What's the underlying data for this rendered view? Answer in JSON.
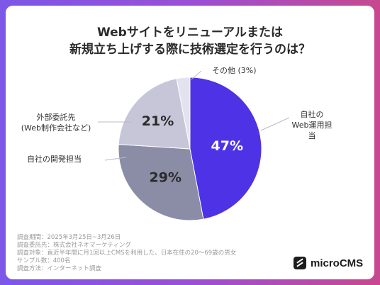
{
  "title_lines": [
    "Webサイトをリニューアルまたは",
    "新規立ち上げする際に技術選定を行うのは？"
  ],
  "chart_data": {
    "type": "pie",
    "slices": [
      {
        "label": "自社の\nWeb運用担当",
        "value": 47,
        "value_label": "47%",
        "color": "#4e32e6"
      },
      {
        "label": "自社の開発担当",
        "value": 29,
        "value_label": "29%",
        "color": "#8b8ca6"
      },
      {
        "label": "外部委託先\n(Web制作会社など)",
        "value": 21,
        "value_label": "21%",
        "color": "#c6c6d8"
      },
      {
        "label": "その他 (3%)",
        "value": 3,
        "value_label": "",
        "color": "#e3e3ef"
      }
    ]
  },
  "footnotes": [
    "調査期間：2025年3月25日~3月26日",
    "調査委託先：株式会社ネオマーケティング",
    "調査対象：直近半年間に月1回以上CMSを利用した、日本在住の20～69歳の男女",
    "サンプル数：400名",
    "調査方法：インターネット調査"
  ],
  "logo_text": "microCMS"
}
